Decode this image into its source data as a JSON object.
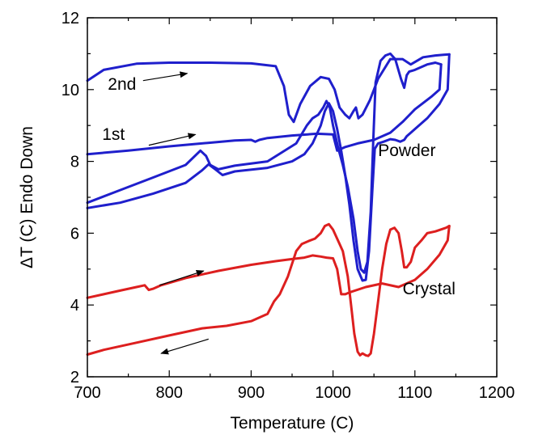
{
  "chart_data": {
    "type": "line",
    "title": "",
    "xlabel": "Temperature (C)",
    "ylabel": "ΔT (C) Endo Down",
    "xlim": [
      700,
      1200
    ],
    "ylim": [
      2,
      12
    ],
    "xticks": [
      700,
      800,
      900,
      1000,
      1100,
      1200
    ],
    "yticks": [
      2,
      4,
      6,
      8,
      10,
      12
    ],
    "grid": false,
    "colors": {
      "powder": "#1f1fcc",
      "crystal": "#dd1f1f"
    },
    "series": [
      {
        "id": "powder-2nd-heat",
        "color": "powder",
        "x": [
          700,
          720,
          760,
          800,
          850,
          900,
          930,
          940,
          946,
          952,
          960,
          972,
          985,
          995,
          1002,
          1008,
          1015,
          1020,
          1025,
          1028,
          1031,
          1036,
          1045,
          1055,
          1070,
          1085,
          1095,
          1110,
          1125,
          1135,
          1142
        ],
        "y": [
          10.25,
          10.55,
          10.72,
          10.75,
          10.75,
          10.73,
          10.65,
          10.1,
          9.3,
          9.1,
          9.6,
          10.1,
          10.35,
          10.3,
          10.0,
          9.5,
          9.3,
          9.2,
          9.4,
          9.5,
          9.2,
          9.3,
          9.7,
          10.3,
          10.85,
          10.85,
          10.7,
          10.9,
          10.95,
          10.97,
          10.98
        ]
      },
      {
        "id": "powder-2nd-cool",
        "color": "powder",
        "x": [
          1142,
          1140,
          1130,
          1115,
          1100,
          1090,
          1087,
          1082,
          1076,
          1070,
          1062,
          1055,
          1051,
          1048,
          1044,
          1040,
          1036,
          1030,
          1025,
          1020,
          1015,
          1010,
          1005,
          1000,
          995,
          990,
          985,
          975,
          965,
          950,
          920,
          880,
          865,
          855,
          848,
          840,
          820,
          780,
          740,
          700
        ],
        "y": [
          10.98,
          10.0,
          9.6,
          9.2,
          8.9,
          8.7,
          8.6,
          8.55,
          8.6,
          8.62,
          8.55,
          8.5,
          8.35,
          7.2,
          5.5,
          4.7,
          4.68,
          5.0,
          5.8,
          6.8,
          7.6,
          8.3,
          8.9,
          9.4,
          9.62,
          9.4,
          9.0,
          8.5,
          8.2,
          8.0,
          7.82,
          7.72,
          7.62,
          7.8,
          7.92,
          7.75,
          7.4,
          7.1,
          6.85,
          6.7
        ]
      },
      {
        "id": "powder-1st-heat",
        "color": "powder",
        "x": [
          700,
          750,
          800,
          850,
          880,
          900,
          905,
          910,
          920,
          950,
          980,
          1000,
          1005,
          1015,
          1030,
          1050,
          1070,
          1085,
          1100,
          1120,
          1130,
          1132
        ],
        "y": [
          8.2,
          8.3,
          8.42,
          8.52,
          8.58,
          8.6,
          8.55,
          8.6,
          8.65,
          8.72,
          8.77,
          8.75,
          8.3,
          8.4,
          8.5,
          8.6,
          8.8,
          9.1,
          9.45,
          9.8,
          10.0,
          10.7
        ]
      },
      {
        "id": "powder-1st-cool",
        "color": "powder",
        "x": [
          1132,
          1125,
          1115,
          1100,
          1093,
          1090,
          1087,
          1083,
          1076,
          1070,
          1064,
          1058,
          1052,
          1049,
          1046,
          1042,
          1038,
          1034,
          1030,
          1025,
          1018,
          1012,
          1006,
          1000,
          996,
          992,
          988,
          982,
          975,
          968,
          955,
          920,
          880,
          860,
          850,
          845,
          838,
          820,
          780,
          740,
          700
        ],
        "y": [
          10.7,
          10.75,
          10.7,
          10.55,
          10.5,
          10.4,
          10.05,
          10.3,
          10.85,
          11.0,
          10.95,
          10.8,
          10.2,
          8.5,
          6.6,
          5.2,
          4.9,
          5.0,
          5.5,
          6.4,
          7.3,
          7.9,
          8.4,
          9.0,
          9.5,
          9.68,
          9.5,
          9.3,
          9.2,
          9.0,
          8.5,
          8.0,
          7.88,
          7.78,
          7.9,
          8.15,
          8.3,
          7.9,
          7.55,
          7.2,
          6.85
        ]
      },
      {
        "id": "crystal-heat",
        "color": "crystal",
        "x": [
          700,
          720,
          740,
          760,
          770,
          775,
          780,
          790,
          820,
          860,
          900,
          930,
          950,
          965,
          975,
          985,
          992,
          1000,
          1005,
          1010,
          1015,
          1020,
          1040,
          1060,
          1080,
          1100,
          1115,
          1130,
          1140,
          1142
        ],
        "y": [
          4.2,
          4.3,
          4.4,
          4.5,
          4.55,
          4.42,
          4.45,
          4.55,
          4.75,
          4.95,
          5.12,
          5.22,
          5.28,
          5.32,
          5.38,
          5.35,
          5.32,
          5.3,
          5.0,
          4.3,
          4.3,
          4.35,
          4.5,
          4.6,
          4.5,
          4.7,
          5.0,
          5.4,
          5.8,
          6.2
        ]
      },
      {
        "id": "crystal-cool",
        "color": "crystal",
        "x": [
          1142,
          1138,
          1125,
          1115,
          1108,
          1100,
          1095,
          1090,
          1087,
          1084,
          1080,
          1075,
          1070,
          1065,
          1060,
          1055,
          1050,
          1046,
          1043,
          1040,
          1036,
          1033,
          1030,
          1026,
          1022,
          1018,
          1012,
          1008,
          1004,
          1000,
          995,
          990,
          985,
          978,
          970,
          962,
          955,
          945,
          935,
          928,
          920,
          900,
          870,
          840,
          800,
          760,
          720,
          700
        ],
        "y": [
          6.2,
          6.15,
          6.05,
          6.0,
          5.8,
          5.6,
          5.2,
          5.05,
          5.05,
          5.5,
          6.0,
          6.15,
          6.1,
          5.7,
          5.0,
          4.1,
          3.2,
          2.65,
          2.58,
          2.6,
          2.65,
          2.6,
          2.7,
          3.2,
          4.0,
          4.8,
          5.5,
          5.7,
          5.9,
          6.1,
          6.25,
          6.2,
          6.0,
          5.85,
          5.78,
          5.7,
          5.5,
          4.8,
          4.3,
          4.1,
          3.75,
          3.55,
          3.42,
          3.35,
          3.15,
          2.95,
          2.75,
          2.62
        ]
      }
    ],
    "annotations": [
      {
        "id": "label-2nd",
        "text": "2nd",
        "x": 725,
        "y": 10.0
      },
      {
        "id": "label-1st",
        "text": "1st",
        "x": 718,
        "y": 8.6
      },
      {
        "id": "label-powder",
        "text": "Powder",
        "x": 1055,
        "y": 8.15
      },
      {
        "id": "label-crystal",
        "text": "Crystal",
        "x": 1085,
        "y": 4.3
      }
    ],
    "arrows": [
      {
        "id": "arrow-2nd",
        "x1": 768,
        "y1": 10.25,
        "x2": 822,
        "y2": 10.45
      },
      {
        "id": "arrow-1st",
        "x1": 775,
        "y1": 8.45,
        "x2": 832,
        "y2": 8.75
      },
      {
        "id": "arrow-crystal-heat",
        "x1": 788,
        "y1": 4.55,
        "x2": 842,
        "y2": 4.95
      },
      {
        "id": "arrow-crystal-cool",
        "x1": 848,
        "y1": 3.05,
        "x2": 790,
        "y2": 2.65
      }
    ]
  }
}
